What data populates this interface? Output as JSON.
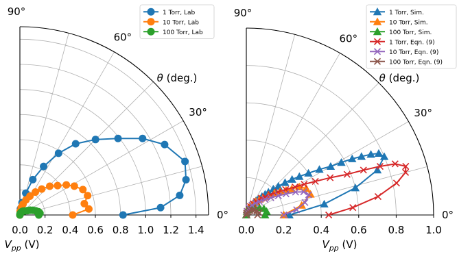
{
  "chart_data": [
    {
      "type": "polar-line",
      "angle_unit": "degrees",
      "theta_range": [
        0,
        90
      ],
      "radial_range": [
        0,
        1.5
      ],
      "radial_ticks": [
        0.0,
        0.2,
        0.4,
        0.6,
        0.8,
        1.0,
        1.2,
        1.4
      ],
      "radial_tick_labels": [
        "0.0",
        "0.2",
        "0.4",
        "0.6",
        "0.8",
        "1.0",
        "1.2",
        "1.4"
      ],
      "angle_ticks": [
        0,
        30,
        60,
        90
      ],
      "angle_tick_labels": [
        "0°",
        "30°",
        "60°",
        "90°"
      ],
      "radial_label": "V_pp (V)",
      "angle_label": "θ (deg.)",
      "grid": true,
      "legend_position": "top-right",
      "series": [
        {
          "name": "1 Torr, Lab",
          "color": "#1f77b4",
          "marker": "circle",
          "theta": [
            0,
            3,
            7,
            12,
            18,
            26,
            32,
            38,
            45,
            52,
            58,
            64,
            70,
            75,
            80,
            85,
            90
          ],
          "r": [
            0.82,
            1.12,
            1.28,
            1.35,
            1.38,
            1.28,
            1.15,
            0.99,
            0.85,
            0.72,
            0.58,
            0.43,
            0.3,
            0.18,
            0.1,
            0.05,
            0.0
          ]
        },
        {
          "name": "10 Torr, Lab",
          "color": "#ff7f0e",
          "marker": "circle",
          "theta": [
            0,
            5,
            10,
            16,
            22,
            28,
            33,
            38,
            44,
            50,
            56,
            62,
            68,
            74,
            80,
            86,
            90
          ],
          "r": [
            0.42,
            0.55,
            0.52,
            0.56,
            0.54,
            0.49,
            0.44,
            0.38,
            0.33,
            0.27,
            0.22,
            0.17,
            0.13,
            0.09,
            0.06,
            0.03,
            0.0
          ]
        },
        {
          "name": "100 Torr, Lab",
          "color": "#2ca02c",
          "marker": "circle",
          "theta": [
            0,
            5,
            10,
            15,
            20,
            25,
            30,
            40,
            50,
            60,
            70,
            80,
            90
          ],
          "r": [
            0.15,
            0.16,
            0.15,
            0.13,
            0.11,
            0.09,
            0.07,
            0.05,
            0.04,
            0.03,
            0.02,
            0.01,
            0.0
          ]
        }
      ]
    },
    {
      "type": "polar-line",
      "angle_unit": "degrees",
      "theta_range": [
        0,
        90
      ],
      "radial_range": [
        0,
        1.0
      ],
      "radial_ticks": [
        0.0,
        0.2,
        0.4,
        0.6,
        0.8,
        1.0
      ],
      "radial_tick_labels": [
        "0.0",
        "0.2",
        "0.4",
        "0.6",
        "0.8",
        "1.0"
      ],
      "angle_ticks": [
        0,
        30,
        60,
        90
      ],
      "angle_tick_labels": [
        "0°",
        "30°",
        "60°",
        "90°"
      ],
      "radial_label": "V_pp (V)",
      "angle_label": "θ (deg.)",
      "grid": true,
      "legend_position": "top-right",
      "series": [
        {
          "name": "1 Torr, Sim.",
          "color": "#1f77b4",
          "marker": "triangle",
          "theta": [
            0,
            8,
            14,
            19,
            23,
            25,
            26,
            27,
            28,
            29,
            30,
            32,
            34,
            36,
            38,
            40,
            42,
            44,
            46,
            48,
            50,
            52,
            54,
            56,
            58,
            60,
            62,
            64,
            68,
            72,
            90
          ],
          "r": [
            0.23,
            0.42,
            0.6,
            0.74,
            0.8,
            0.78,
            0.74,
            0.69,
            0.64,
            0.58,
            0.52,
            0.46,
            0.4,
            0.35,
            0.31,
            0.27,
            0.23,
            0.2,
            0.17,
            0.15,
            0.13,
            0.11,
            0.1,
            0.09,
            0.08,
            0.07,
            0.06,
            0.05,
            0.04,
            0.03,
            0.0
          ]
        },
        {
          "name": "10 Torr, Sim.",
          "color": "#ff7f0e",
          "marker": "triangle",
          "theta": [
            0,
            10,
            18,
            24,
            28,
            30,
            32,
            35,
            38,
            42,
            46,
            50,
            55,
            60,
            66,
            72,
            80,
            90
          ],
          "r": [
            0.2,
            0.3,
            0.36,
            0.35,
            0.32,
            0.28,
            0.25,
            0.22,
            0.19,
            0.16,
            0.13,
            0.11,
            0.09,
            0.07,
            0.05,
            0.04,
            0.02,
            0.0
          ]
        },
        {
          "name": "100 Torr, Sim.",
          "color": "#2ca02c",
          "marker": "triangle",
          "theta": [
            0,
            10,
            20,
            30,
            40,
            50,
            60,
            70,
            80,
            90
          ],
          "r": [
            0.1,
            0.11,
            0.1,
            0.08,
            0.06,
            0.05,
            0.04,
            0.03,
            0.02,
            0.0
          ]
        },
        {
          "name": "1 Torr, Eqn. (9)",
          "color": "#d62728",
          "marker": "x",
          "theta": [
            0,
            4,
            8,
            12,
            15,
            17,
            19,
            20,
            21,
            22,
            24,
            26,
            28,
            30,
            33,
            36,
            40,
            44,
            48,
            53,
            58,
            64,
            70,
            78,
            90
          ],
          "r": [
            0.44,
            0.57,
            0.71,
            0.82,
            0.88,
            0.89,
            0.84,
            0.76,
            0.67,
            0.58,
            0.49,
            0.41,
            0.35,
            0.3,
            0.25,
            0.21,
            0.17,
            0.14,
            0.12,
            0.09,
            0.07,
            0.05,
            0.04,
            0.02,
            0.0
          ]
        },
        {
          "name": "10 Torr, Eqn. (9)",
          "color": "#9467bd",
          "marker": "x",
          "theta": [
            0,
            6,
            12,
            18,
            22,
            25,
            28,
            31,
            35,
            40,
            46,
            52,
            60,
            70,
            80,
            90
          ],
          "r": [
            0.2,
            0.27,
            0.32,
            0.35,
            0.33,
            0.29,
            0.24,
            0.2,
            0.16,
            0.13,
            0.1,
            0.08,
            0.06,
            0.04,
            0.02,
            0.0
          ]
        },
        {
          "name": "100 Torr, Eqn. (9)",
          "color": "#8c564b",
          "marker": "x",
          "theta": [
            0,
            10,
            20,
            30,
            40,
            50,
            60,
            70,
            80,
            90
          ],
          "r": [
            0.06,
            0.07,
            0.06,
            0.05,
            0.04,
            0.03,
            0.02,
            0.01,
            0.01,
            0.0
          ]
        }
      ]
    }
  ]
}
